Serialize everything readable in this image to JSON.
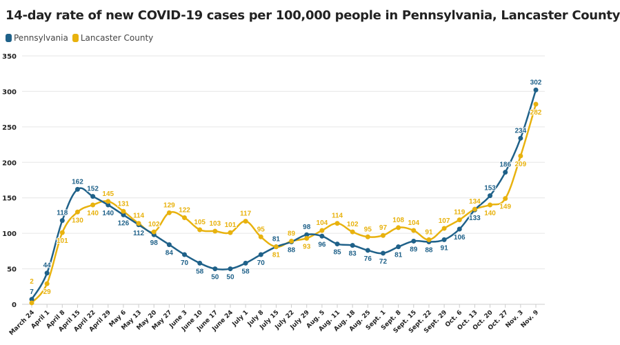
{
  "chart_data": {
    "type": "line",
    "title": "14-day rate of new COVID-19 cases per 100,000 people in Pennsylvania, Lancaster County",
    "xlabel": "",
    "ylabel": "",
    "ylim": [
      0,
      350
    ],
    "yticks": [
      0,
      50,
      100,
      150,
      200,
      250,
      300,
      350
    ],
    "grid": true,
    "legend": "top-left",
    "categories": [
      "March 24",
      "April 1",
      "April 8",
      "April 15",
      "April 22",
      "April 29",
      "May 6",
      "May 13",
      "May 20",
      "May 27",
      "June 3",
      "June 10",
      "June 17",
      "June 24",
      "July 1",
      "July 8",
      "July 15",
      "July 22",
      "July 29",
      "Aug. 5",
      "Aug. 11",
      "Aug. 18",
      "Aug. 25",
      "Sept. 1",
      "Sept. 8",
      "Sept. 15",
      "Sept. 22",
      "Sept. 29",
      "Oct. 6",
      "Oct. 13",
      "Oct. 20",
      "Oct. 27",
      "Nov. 3",
      "Nov. 9"
    ],
    "series": [
      {
        "name": "Pennsylvania",
        "color": "#1f6189",
        "values": [
          7,
          44,
          118,
          162,
          152,
          140,
          126,
          112,
          98,
          84,
          70,
          58,
          50,
          50,
          58,
          70,
          81,
          88,
          98,
          96,
          85,
          83,
          76,
          72,
          81,
          89,
          88,
          91,
          106,
          133,
          153,
          186,
          234,
          302
        ]
      },
      {
        "name": "Lancaster County",
        "color": "#e8b20e",
        "values": [
          2,
          29,
          101,
          130,
          140,
          145,
          131,
          114,
          102,
          129,
          122,
          105,
          103,
          101,
          117,
          95,
          81,
          89,
          93,
          104,
          114,
          102,
          95,
          97,
          108,
          104,
          91,
          107,
          119,
          134,
          140,
          149,
          209,
          282
        ]
      }
    ]
  }
}
